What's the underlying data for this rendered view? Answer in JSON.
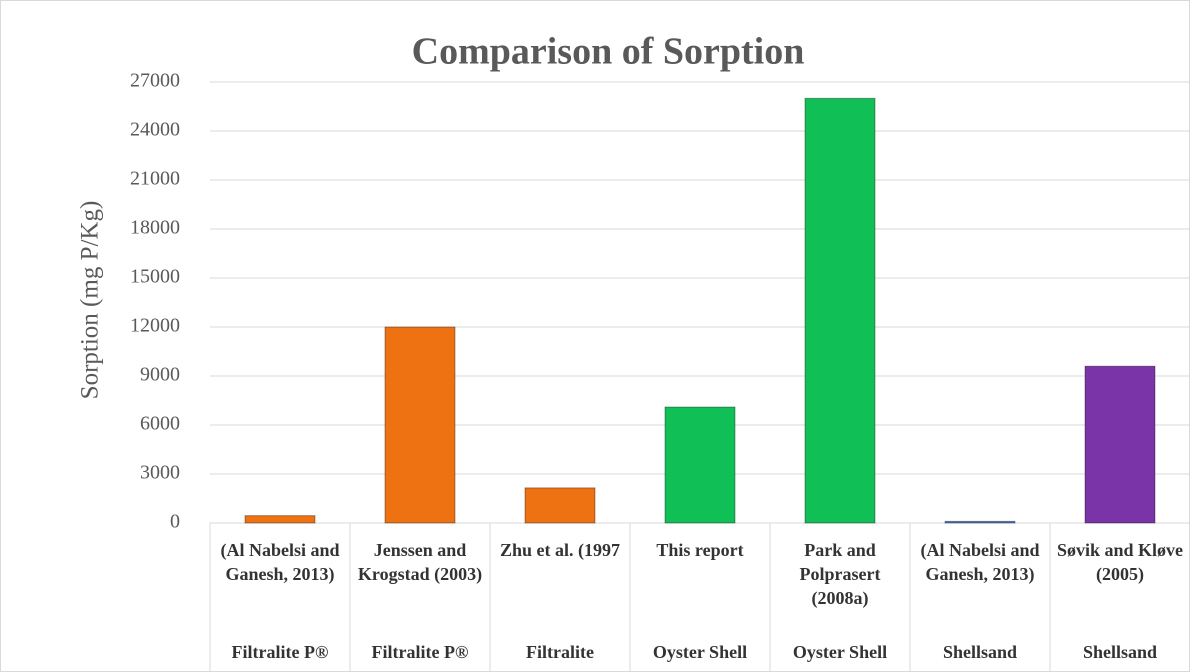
{
  "chart_data": {
    "type": "bar",
    "title": "Comparison of Sorption",
    "ylabel": "Sorption (mg P/Kg)",
    "categories": [
      "(Al Nabelsi and Ganesh, 2013)",
      "Jenssen and Krogstad (2003)",
      "Zhu et al. (1997",
      "This report",
      "Park and Polprasert (2008a)",
      "(Al Nabelsi and Ganesh, 2013)",
      "Søvik and Kløve (2005)"
    ],
    "groups": [
      "Filtralite P®",
      "Filtralite P®",
      "Filtralite",
      "Oyster Shell",
      "Oyster Shell",
      "Shellsand",
      "Shellsand"
    ],
    "values": [
      450,
      12000,
      2150,
      7100,
      26000,
      100,
      9600
    ],
    "colors": [
      "#ef7212",
      "#ef7212",
      "#ef7212",
      "#10bf55",
      "#10bf55",
      "#4472c4",
      "#7b33a8"
    ],
    "ylim": [
      0,
      27000
    ],
    "yticks": [
      0,
      3000,
      6000,
      9000,
      12000,
      15000,
      18000,
      21000,
      24000,
      27000
    ],
    "grid": true
  }
}
